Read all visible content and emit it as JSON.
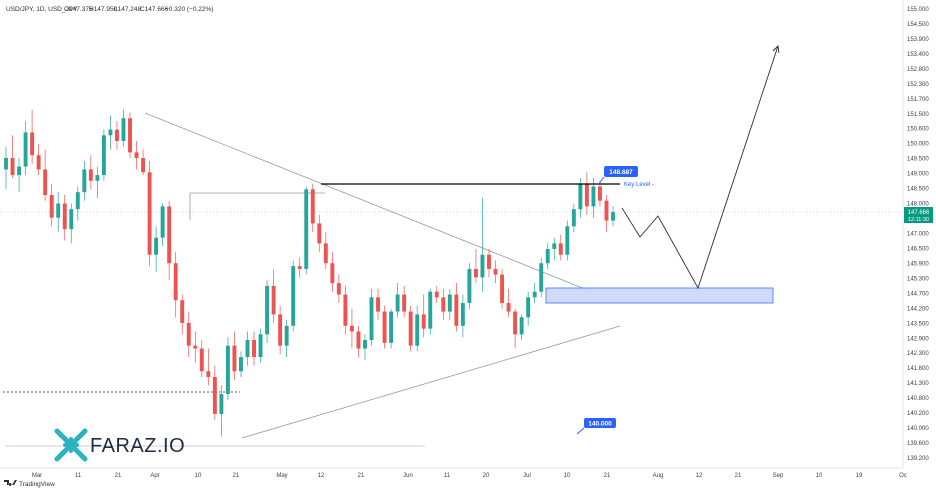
{
  "header": {
    "symbol": "USD/JPY, 1D, USD_JPY",
    "open": "O147.375",
    "high": "H147.950",
    "low": "L147.248",
    "close": "C147.666",
    "change": "−0.320 (−0.22%)"
  },
  "badges": {
    "last_price": "147.666",
    "countdown": "12:11:30",
    "key_high": "148.687",
    "key_label": "Key Level -",
    "target_low": "140.000"
  },
  "logo": {
    "text": "FARAZ.IO"
  },
  "footer": {
    "brand": "TradingView"
  },
  "colors": {
    "up": "#26a69a",
    "down": "#ef5350",
    "badge_blue": "#2962ff",
    "zone_fill": "#c9d8fb",
    "zone_border": "#2962ff",
    "projection": "#2a2e39",
    "last_price": "#089981"
  },
  "chart_data": {
    "type": "candlestick",
    "y_axis_labels": [
      "155.000",
      "154.500",
      "153.900",
      "153.400",
      "152.800",
      "152.300",
      "151.700",
      "151.500",
      "150.600",
      "150.000",
      "149.500",
      "149.000",
      "148.500",
      "148.000",
      "147.500",
      "147.000",
      "146.500",
      "145.900",
      "145.300",
      "144.700",
      "144.200",
      "143.500",
      "142.900",
      "142.300",
      "141.800",
      "141.300",
      "140.800",
      "140.200",
      "140.000",
      "139.600",
      "139.200"
    ],
    "ylim": [
      139.2,
      155.0
    ],
    "x_axis_labels": [
      "Mar",
      "11",
      "21",
      "Apr",
      "10",
      "21",
      "May",
      "12",
      "21",
      "Jun",
      "11",
      "20",
      "Jul",
      "10",
      "21",
      "Aug",
      "12",
      "21",
      "Sep",
      "10",
      "19",
      "Oc"
    ],
    "candles": [
      {
        "o": 149.2,
        "h": 150.0,
        "l": 148.5,
        "c": 149.6
      },
      {
        "o": 149.6,
        "h": 150.4,
        "l": 148.9,
        "c": 149.0
      },
      {
        "o": 149.0,
        "h": 149.6,
        "l": 148.4,
        "c": 149.3
      },
      {
        "o": 149.3,
        "h": 150.9,
        "l": 149.0,
        "c": 150.5
      },
      {
        "o": 150.5,
        "h": 151.3,
        "l": 149.4,
        "c": 149.7
      },
      {
        "o": 149.7,
        "h": 150.1,
        "l": 149.0,
        "c": 149.2
      },
      {
        "o": 149.2,
        "h": 149.9,
        "l": 148.1,
        "c": 148.3
      },
      {
        "o": 148.3,
        "h": 148.7,
        "l": 147.2,
        "c": 147.5
      },
      {
        "o": 147.5,
        "h": 148.4,
        "l": 147.0,
        "c": 148.0
      },
      {
        "o": 148.0,
        "h": 148.3,
        "l": 146.7,
        "c": 147.1
      },
      {
        "o": 147.1,
        "h": 148.0,
        "l": 146.6,
        "c": 147.8
      },
      {
        "o": 147.8,
        "h": 148.6,
        "l": 147.4,
        "c": 148.4
      },
      {
        "o": 148.4,
        "h": 149.5,
        "l": 148.1,
        "c": 149.2
      },
      {
        "o": 149.2,
        "h": 149.7,
        "l": 148.5,
        "c": 148.8
      },
      {
        "o": 148.8,
        "h": 149.3,
        "l": 148.2,
        "c": 149.0
      },
      {
        "o": 149.0,
        "h": 150.6,
        "l": 148.8,
        "c": 150.4
      },
      {
        "o": 150.4,
        "h": 151.1,
        "l": 149.9,
        "c": 150.6
      },
      {
        "o": 150.6,
        "h": 150.9,
        "l": 149.9,
        "c": 150.2
      },
      {
        "o": 150.2,
        "h": 151.3,
        "l": 150.0,
        "c": 151.0
      },
      {
        "o": 151.0,
        "h": 151.2,
        "l": 149.6,
        "c": 149.8
      },
      {
        "o": 149.8,
        "h": 150.2,
        "l": 149.2,
        "c": 149.6
      },
      {
        "o": 149.6,
        "h": 149.9,
        "l": 149.0,
        "c": 149.1
      },
      {
        "o": 149.1,
        "h": 149.5,
        "l": 145.8,
        "c": 146.2
      },
      {
        "o": 146.2,
        "h": 147.2,
        "l": 145.6,
        "c": 146.8
      },
      {
        "o": 146.8,
        "h": 148.0,
        "l": 146.5,
        "c": 147.9
      },
      {
        "o": 147.9,
        "h": 148.1,
        "l": 145.3,
        "c": 145.9
      },
      {
        "o": 145.9,
        "h": 146.3,
        "l": 144.0,
        "c": 144.6
      },
      {
        "o": 144.6,
        "h": 144.8,
        "l": 143.4,
        "c": 143.8
      },
      {
        "o": 143.8,
        "h": 144.2,
        "l": 142.6,
        "c": 143.0
      },
      {
        "o": 143.0,
        "h": 143.5,
        "l": 142.4,
        "c": 142.9
      },
      {
        "o": 142.9,
        "h": 143.2,
        "l": 141.9,
        "c": 142.1
      },
      {
        "o": 142.1,
        "h": 142.9,
        "l": 141.6,
        "c": 141.9
      },
      {
        "o": 141.9,
        "h": 142.3,
        "l": 140.4,
        "c": 140.6
      },
      {
        "o": 140.6,
        "h": 141.6,
        "l": 139.8,
        "c": 141.3
      },
      {
        "o": 141.3,
        "h": 143.3,
        "l": 141.1,
        "c": 143.0
      },
      {
        "o": 143.0,
        "h": 143.5,
        "l": 141.8,
        "c": 142.1
      },
      {
        "o": 142.1,
        "h": 142.8,
        "l": 141.9,
        "c": 142.6
      },
      {
        "o": 142.6,
        "h": 143.5,
        "l": 142.3,
        "c": 143.2
      },
      {
        "o": 143.2,
        "h": 143.5,
        "l": 142.3,
        "c": 142.6
      },
      {
        "o": 142.6,
        "h": 143.6,
        "l": 142.4,
        "c": 143.4
      },
      {
        "o": 143.4,
        "h": 145.3,
        "l": 143.1,
        "c": 145.1
      },
      {
        "o": 145.1,
        "h": 145.7,
        "l": 143.8,
        "c": 144.1
      },
      {
        "o": 144.1,
        "h": 144.4,
        "l": 142.7,
        "c": 143.0
      },
      {
        "o": 143.0,
        "h": 143.9,
        "l": 142.6,
        "c": 143.7
      },
      {
        "o": 143.7,
        "h": 146.0,
        "l": 143.5,
        "c": 145.8
      },
      {
        "o": 145.8,
        "h": 146.1,
        "l": 145.4,
        "c": 145.7
      },
      {
        "o": 145.7,
        "h": 148.6,
        "l": 145.5,
        "c": 148.5
      },
      {
        "o": 148.5,
        "h": 148.7,
        "l": 147.0,
        "c": 147.3
      },
      {
        "o": 147.3,
        "h": 147.6,
        "l": 146.3,
        "c": 146.6
      },
      {
        "o": 146.6,
        "h": 147.0,
        "l": 145.7,
        "c": 145.9
      },
      {
        "o": 145.9,
        "h": 146.3,
        "l": 144.9,
        "c": 145.2
      },
      {
        "o": 145.2,
        "h": 145.5,
        "l": 144.5,
        "c": 144.8
      },
      {
        "o": 144.8,
        "h": 145.1,
        "l": 143.4,
        "c": 143.7
      },
      {
        "o": 143.7,
        "h": 144.3,
        "l": 142.9,
        "c": 143.5
      },
      {
        "o": 143.5,
        "h": 143.7,
        "l": 142.6,
        "c": 142.9
      },
      {
        "o": 142.9,
        "h": 143.4,
        "l": 142.5,
        "c": 143.2
      },
      {
        "o": 143.2,
        "h": 145.0,
        "l": 143.0,
        "c": 144.7
      },
      {
        "o": 144.7,
        "h": 145.0,
        "l": 143.9,
        "c": 144.2
      },
      {
        "o": 144.2,
        "h": 144.4,
        "l": 142.9,
        "c": 143.1
      },
      {
        "o": 143.1,
        "h": 144.3,
        "l": 142.9,
        "c": 144.2
      },
      {
        "o": 144.2,
        "h": 145.2,
        "l": 144.0,
        "c": 144.8
      },
      {
        "o": 144.8,
        "h": 145.1,
        "l": 144.0,
        "c": 144.2
      },
      {
        "o": 144.2,
        "h": 144.4,
        "l": 142.8,
        "c": 143.0
      },
      {
        "o": 143.0,
        "h": 144.4,
        "l": 142.8,
        "c": 144.1
      },
      {
        "o": 144.1,
        "h": 144.8,
        "l": 143.3,
        "c": 143.6
      },
      {
        "o": 143.6,
        "h": 145.0,
        "l": 143.4,
        "c": 144.9
      },
      {
        "o": 144.9,
        "h": 145.1,
        "l": 144.5,
        "c": 144.7
      },
      {
        "o": 144.7,
        "h": 145.0,
        "l": 143.9,
        "c": 144.2
      },
      {
        "o": 144.2,
        "h": 145.0,
        "l": 143.9,
        "c": 144.8
      },
      {
        "o": 144.8,
        "h": 145.2,
        "l": 143.5,
        "c": 143.7
      },
      {
        "o": 143.7,
        "h": 144.8,
        "l": 143.3,
        "c": 144.5
      },
      {
        "o": 144.5,
        "h": 145.9,
        "l": 144.3,
        "c": 145.7
      },
      {
        "o": 145.7,
        "h": 146.4,
        "l": 145.2,
        "c": 145.4
      },
      {
        "o": 145.4,
        "h": 148.2,
        "l": 144.9,
        "c": 146.2
      },
      {
        "o": 146.2,
        "h": 146.4,
        "l": 145.4,
        "c": 145.7
      },
      {
        "o": 145.7,
        "h": 146.0,
        "l": 145.2,
        "c": 145.5
      },
      {
        "o": 145.5,
        "h": 145.7,
        "l": 144.3,
        "c": 144.5
      },
      {
        "o": 144.5,
        "h": 145.0,
        "l": 144.0,
        "c": 144.2
      },
      {
        "o": 144.2,
        "h": 144.3,
        "l": 142.9,
        "c": 143.4
      },
      {
        "o": 143.4,
        "h": 144.1,
        "l": 143.2,
        "c": 144.0
      },
      {
        "o": 144.0,
        "h": 144.9,
        "l": 143.7,
        "c": 144.7
      },
      {
        "o": 144.7,
        "h": 145.2,
        "l": 144.5,
        "c": 144.9
      },
      {
        "o": 144.9,
        "h": 146.1,
        "l": 144.7,
        "c": 145.9
      },
      {
        "o": 145.9,
        "h": 146.6,
        "l": 145.7,
        "c": 146.4
      },
      {
        "o": 146.4,
        "h": 146.8,
        "l": 146.0,
        "c": 146.6
      },
      {
        "o": 146.6,
        "h": 146.9,
        "l": 146.0,
        "c": 146.2
      },
      {
        "o": 146.2,
        "h": 147.4,
        "l": 146.0,
        "c": 147.2
      },
      {
        "o": 147.2,
        "h": 148.0,
        "l": 147.0,
        "c": 147.8
      },
      {
        "o": 147.8,
        "h": 148.9,
        "l": 147.5,
        "c": 148.7
      },
      {
        "o": 148.7,
        "h": 149.1,
        "l": 147.6,
        "c": 147.9
      },
      {
        "o": 147.9,
        "h": 148.9,
        "l": 147.5,
        "c": 148.6
      },
      {
        "o": 148.6,
        "h": 148.8,
        "l": 147.9,
        "c": 148.1
      },
      {
        "o": 148.1,
        "h": 148.3,
        "l": 147.0,
        "c": 147.4
      },
      {
        "o": 147.4,
        "h": 147.9,
        "l": 147.2,
        "c": 147.7
      }
    ],
    "annotations": {
      "key_level": 148.687,
      "target": 140.0,
      "demand_zone": [
        144.7,
        145.3
      ],
      "last_price": 147.666
    }
  }
}
